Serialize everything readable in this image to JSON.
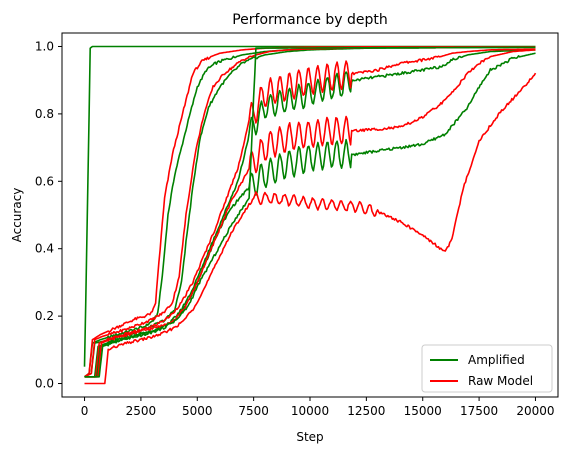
{
  "chart_data": {
    "type": "line",
    "title": "Performance by depth",
    "xlabel": "Step",
    "ylabel": "Accuracy",
    "xlim": [
      -1000,
      21000
    ],
    "ylim": [
      -0.04,
      1.04
    ],
    "xticks": [
      0,
      2500,
      5000,
      7500,
      10000,
      12500,
      15000,
      17500,
      20000
    ],
    "yticks": [
      0.0,
      0.2,
      0.4,
      0.6,
      0.8,
      1.0
    ],
    "grid": false,
    "legend": {
      "position": "lower-right",
      "entries": [
        {
          "label": "Amplified",
          "color": "#008000"
        },
        {
          "label": "Raw Model",
          "color": "#ff0000"
        }
      ]
    },
    "series": [
      {
        "group": "Amplified",
        "color": "#008000",
        "x": [
          0,
          150,
          250,
          350,
          20000
        ],
        "y": [
          0.05,
          0.6,
          0.995,
          1.0,
          1.0
        ]
      },
      {
        "group": "Amplified",
        "color": "#008000",
        "x": [
          0,
          200,
          350,
          700,
          1200,
          1700,
          2200,
          2700,
          3100,
          3250,
          3450,
          3700,
          4000,
          4300,
          4600,
          5000,
          5400,
          5800,
          6200,
          7000,
          8000,
          9000,
          10000,
          12000,
          15000,
          17500,
          20000
        ],
        "y": [
          0.02,
          0.03,
          0.12,
          0.13,
          0.14,
          0.15,
          0.16,
          0.17,
          0.19,
          0.21,
          0.32,
          0.5,
          0.62,
          0.7,
          0.78,
          0.88,
          0.93,
          0.95,
          0.96,
          0.975,
          0.985,
          0.99,
          0.992,
          0.995,
          0.996,
          0.997,
          0.998
        ],
        "osc": null
      },
      {
        "group": "Raw Model",
        "color": "#ff0000",
        "x": [
          0,
          200,
          350,
          700,
          1200,
          1700,
          2200,
          2700,
          3000,
          3150,
          3300,
          3550,
          3900,
          4200,
          4500,
          4800,
          5200,
          5600,
          6000,
          7000,
          8000,
          9000,
          10000,
          12500,
          15000,
          17500,
          20000
        ],
        "y": [
          0.02,
          0.03,
          0.13,
          0.145,
          0.16,
          0.175,
          0.19,
          0.2,
          0.21,
          0.24,
          0.36,
          0.55,
          0.68,
          0.76,
          0.84,
          0.92,
          0.955,
          0.97,
          0.98,
          0.99,
          0.995,
          0.997,
          0.998,
          0.999,
          0.999,
          0.999,
          0.999
        ],
        "osc": null
      },
      {
        "group": "Amplified",
        "color": "#008000",
        "x": [
          0,
          300,
          450,
          800,
          1300,
          1800,
          2400,
          3000,
          3600,
          4000,
          4300,
          4500,
          4800,
          5100,
          5500,
          6000,
          6500,
          7000,
          7500,
          8000,
          9000,
          10000,
          12500,
          15000,
          17500,
          20000
        ],
        "y": [
          0.02,
          0.03,
          0.12,
          0.125,
          0.135,
          0.145,
          0.155,
          0.17,
          0.19,
          0.22,
          0.3,
          0.42,
          0.58,
          0.72,
          0.82,
          0.88,
          0.92,
          0.95,
          0.965,
          0.975,
          0.985,
          0.99,
          0.995,
          0.996,
          0.997,
          0.997
        ],
        "osc": null
      },
      {
        "group": "Raw Model",
        "color": "#ff0000",
        "x": [
          0,
          300,
          450,
          800,
          1300,
          1800,
          2400,
          3000,
          3500,
          3900,
          4200,
          4500,
          4900,
          5300,
          5700,
          6200,
          6600,
          7000,
          7600,
          8200,
          9000,
          10000,
          12500,
          15000,
          17500,
          20000
        ],
        "y": [
          0.02,
          0.03,
          0.13,
          0.14,
          0.15,
          0.16,
          0.175,
          0.19,
          0.21,
          0.24,
          0.32,
          0.5,
          0.68,
          0.8,
          0.88,
          0.92,
          0.94,
          0.96,
          0.975,
          0.985,
          0.99,
          0.993,
          0.996,
          0.997,
          0.998,
          0.998
        ],
        "osc": null
      },
      {
        "group": "Amplified",
        "color": "#008000",
        "x": [
          0,
          450,
          600,
          1000,
          1500,
          2000,
          2600,
          3200,
          3800,
          4300,
          4800,
          5300,
          5800,
          6300,
          6800,
          7100,
          7300,
          8000,
          9000,
          10000,
          11000,
          12000,
          13000,
          14000,
          15000,
          15800,
          16300,
          17000,
          18000,
          20000
        ],
        "y": [
          0.02,
          0.02,
          0.11,
          0.12,
          0.13,
          0.14,
          0.15,
          0.16,
          0.18,
          0.22,
          0.28,
          0.36,
          0.44,
          0.52,
          0.6,
          0.68,
          0.74,
          0.82,
          0.84,
          0.86,
          0.88,
          0.9,
          0.91,
          0.92,
          0.93,
          0.94,
          0.96,
          0.975,
          0.985,
          0.99
        ],
        "osc": {
          "from": 7300,
          "to": 11800,
          "period": 420,
          "amp": 0.035
        }
      },
      {
        "group": "Raw Model",
        "color": "#ff0000",
        "x": [
          0,
          500,
          650,
          1000,
          1500,
          2000,
          2600,
          3200,
          3800,
          4300,
          4800,
          5300,
          5800,
          6300,
          6800,
          7100,
          7300,
          8000,
          9000,
          10000,
          11000,
          12000,
          13000,
          14000,
          15000,
          15800,
          16300,
          17000,
          18000,
          20000
        ],
        "y": [
          0.02,
          0.02,
          0.12,
          0.13,
          0.14,
          0.15,
          0.16,
          0.175,
          0.2,
          0.24,
          0.3,
          0.38,
          0.46,
          0.55,
          0.64,
          0.72,
          0.78,
          0.86,
          0.88,
          0.9,
          0.91,
          0.92,
          0.93,
          0.95,
          0.96,
          0.97,
          0.98,
          0.985,
          0.99,
          0.992
        ],
        "osc": {
          "from": 7300,
          "to": 11800,
          "period": 420,
          "amp": 0.04
        }
      },
      {
        "group": "Amplified",
        "color": "#008000",
        "x": [
          0,
          550,
          700,
          1100,
          1600,
          2200,
          2800,
          3400,
          4000,
          4500,
          5000,
          5500,
          6000,
          6500,
          7000,
          7300,
          8000,
          9000,
          10000,
          11000,
          12000,
          13000,
          14000,
          15000,
          16000,
          17000,
          17500,
          18000,
          19000,
          20000
        ],
        "y": [
          0.02,
          0.02,
          0.11,
          0.12,
          0.13,
          0.14,
          0.15,
          0.165,
          0.19,
          0.23,
          0.3,
          0.38,
          0.46,
          0.52,
          0.56,
          0.58,
          0.62,
          0.65,
          0.67,
          0.68,
          0.68,
          0.69,
          0.7,
          0.71,
          0.74,
          0.82,
          0.88,
          0.93,
          0.965,
          0.98
        ],
        "osc": {
          "from": 7300,
          "to": 11800,
          "period": 420,
          "amp": 0.04
        }
      },
      {
        "group": "Raw Model",
        "color": "#ff0000",
        "x": [
          0,
          600,
          750,
          1100,
          1600,
          2200,
          2800,
          3400,
          4000,
          4500,
          5000,
          5500,
          6000,
          6500,
          7000,
          7300,
          8000,
          9000,
          10000,
          11000,
          12000,
          13000,
          14000,
          15000,
          16000,
          16500,
          17000,
          17500,
          18000,
          19000,
          20000
        ],
        "y": [
          0.02,
          0.02,
          0.12,
          0.13,
          0.14,
          0.15,
          0.16,
          0.17,
          0.19,
          0.23,
          0.3,
          0.38,
          0.46,
          0.54,
          0.6,
          0.64,
          0.7,
          0.73,
          0.74,
          0.75,
          0.75,
          0.755,
          0.76,
          0.79,
          0.84,
          0.88,
          0.92,
          0.95,
          0.97,
          0.985,
          0.99
        ],
        "osc": {
          "from": 7300,
          "to": 11800,
          "period": 420,
          "amp": 0.04
        }
      },
      {
        "group": "Amplified",
        "color": "#008000",
        "x": [
          0,
          650,
          800,
          1200,
          1700,
          2300,
          2900,
          3500,
          4100,
          4600,
          5100,
          5600,
          6100,
          6600,
          7000,
          7300,
          7600,
          20000
        ],
        "y": [
          0.02,
          0.02,
          0.11,
          0.12,
          0.13,
          0.14,
          0.15,
          0.165,
          0.19,
          0.23,
          0.3,
          0.36,
          0.42,
          0.48,
          0.52,
          0.55,
          0.995,
          0.998
        ],
        "osc": null
      },
      {
        "group": "Raw Model",
        "color": "#ff0000",
        "x": [
          0,
          900,
          1050,
          1400,
          1900,
          2500,
          3100,
          3700,
          4300,
          4800,
          5300,
          5800,
          6300,
          6800,
          7200,
          7500,
          8000,
          9000,
          10000,
          11000,
          12000,
          13000,
          14000,
          15000,
          15600,
          16000,
          16300,
          16800,
          17500,
          18500,
          19500,
          20000
        ],
        "y": [
          0.0,
          0.0,
          0.1,
          0.11,
          0.12,
          0.13,
          0.14,
          0.155,
          0.18,
          0.22,
          0.28,
          0.35,
          0.42,
          0.48,
          0.52,
          0.55,
          0.55,
          0.545,
          0.535,
          0.53,
          0.525,
          0.51,
          0.48,
          0.44,
          0.41,
          0.39,
          0.43,
          0.58,
          0.72,
          0.81,
          0.88,
          0.92
        ],
        "osc": {
          "from": 7500,
          "to": 13000,
          "period": 420,
          "amp": 0.015
        }
      }
    ]
  }
}
